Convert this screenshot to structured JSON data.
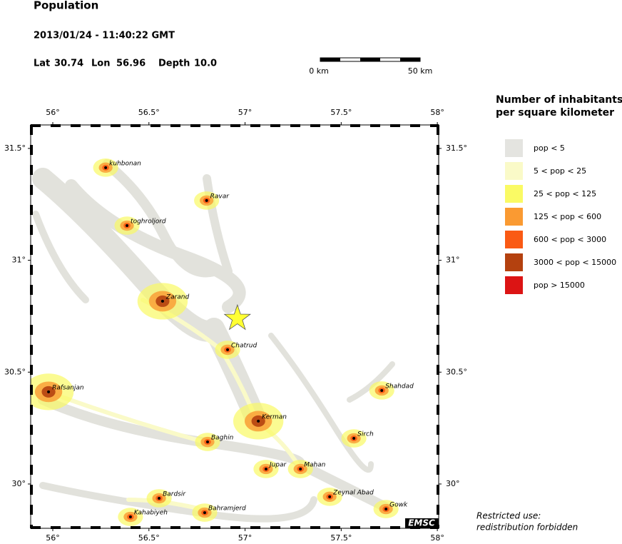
{
  "header": {
    "title": "Population",
    "datetime": "2013/01/24 - 11:40:22 GMT"
  },
  "event": {
    "lat_label": "Lat",
    "lat": 30.74,
    "lon_label": "Lon",
    "lon": 56.96,
    "depth_label": "Depth",
    "depth": 10.0,
    "depth_text": "10.0",
    "star_color": "#ffff33"
  },
  "scale_bar": {
    "start_label": "0 km",
    "end_label": "50 km"
  },
  "map": {
    "xlim": [
      55.885,
      58.007
    ],
    "ylim": [
      29.802,
      31.605
    ],
    "xticks": [
      {
        "value": 56,
        "label": "56°"
      },
      {
        "value": 56.5,
        "label": "56.5°"
      },
      {
        "value": 57,
        "label": "57°"
      },
      {
        "value": 57.5,
        "label": "57.5°"
      },
      {
        "value": 58,
        "label": "58°"
      }
    ],
    "yticks": [
      {
        "value": 30,
        "label": "30°"
      },
      {
        "value": 30.5,
        "label": "30.5°"
      },
      {
        "value": 31,
        "label": "31°"
      },
      {
        "value": 31.5,
        "label": "31.5°"
      }
    ],
    "cities": [
      {
        "name": "kuhbonan",
        "lon": 56.275,
        "lat": 31.414
      },
      {
        "name": "Ravar",
        "lon": 56.8,
        "lat": 31.267
      },
      {
        "name": "toghroljord",
        "lon": 56.386,
        "lat": 31.155
      },
      {
        "name": "Zarand",
        "lon": 56.571,
        "lat": 30.817
      },
      {
        "name": "Chatrud",
        "lon": 56.909,
        "lat": 30.6
      },
      {
        "name": "Rafsanjan",
        "lon": 55.978,
        "lat": 30.412
      },
      {
        "name": "Shahdad",
        "lon": 57.711,
        "lat": 30.418
      },
      {
        "name": "Kerman",
        "lon": 57.069,
        "lat": 30.281
      },
      {
        "name": "Sirch",
        "lon": 57.566,
        "lat": 30.204
      },
      {
        "name": "Baghin",
        "lon": 56.805,
        "lat": 30.188
      },
      {
        "name": "Jupar",
        "lon": 57.109,
        "lat": 30.067
      },
      {
        "name": "Mahan",
        "lon": 57.288,
        "lat": 30.067
      },
      {
        "name": "Zeynal Abad",
        "lon": 57.44,
        "lat": 29.943
      },
      {
        "name": "Gowk",
        "lon": 57.733,
        "lat": 29.888
      },
      {
        "name": "Bardsir",
        "lon": 56.553,
        "lat": 29.936
      },
      {
        "name": "Kahabiyeh",
        "lon": 56.404,
        "lat": 29.853
      },
      {
        "name": "Bahramjerd",
        "lon": 56.79,
        "lat": 29.872
      }
    ],
    "logo": "EMSC"
  },
  "legend": {
    "title_lines": [
      "Number of inhabitants",
      "per square kilometer"
    ],
    "items": [
      {
        "label": "pop < 5",
        "color": "#e4e4e0"
      },
      {
        "label": "5 < pop < 25",
        "color": "#fafac8"
      },
      {
        "label": "25 < pop < 125",
        "color": "#fafa64"
      },
      {
        "label": "125 < pop < 600",
        "color": "#fa9a32"
      },
      {
        "label": "600 < pop < 3000",
        "color": "#fa5a14"
      },
      {
        "label": "3000 < pop < 15000",
        "color": "#b4410f"
      },
      {
        "label": "pop > 15000",
        "color": "#dc1414"
      }
    ]
  },
  "notice": {
    "lines": [
      "Restricted use:",
      "redistribution forbidden"
    ]
  }
}
